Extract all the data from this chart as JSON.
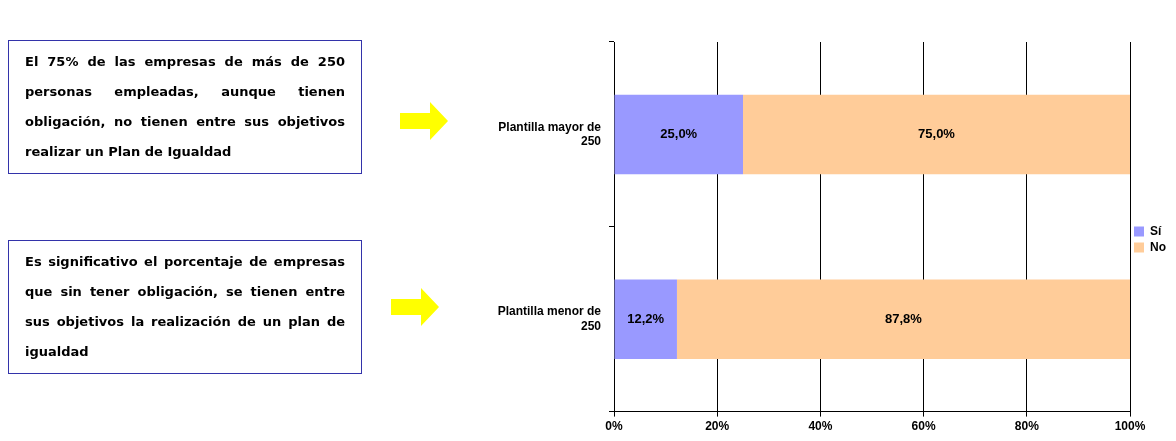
{
  "chart_data": {
    "type": "bar",
    "orientation": "horizontal",
    "stacked": true,
    "categories": [
      "Plantilla mayor de 250",
      "Plantilla menor de 250"
    ],
    "series": [
      {
        "name": "Sí",
        "color": "#9999ff",
        "values": [
          25.0,
          12.2
        ],
        "value_labels": [
          "25,0%",
          "12,2%"
        ]
      },
      {
        "name": "No",
        "color": "#ffcc99",
        "values": [
          75.0,
          87.8
        ],
        "value_labels": [
          "75,0%",
          "87,8%"
        ]
      }
    ],
    "xlim": [
      0,
      100
    ],
    "xticks": [
      {
        "value": 0,
        "label": "0%"
      },
      {
        "value": 20,
        "label": "20%"
      },
      {
        "value": 40,
        "label": "40%"
      },
      {
        "value": 60,
        "label": "60%"
      },
      {
        "value": 80,
        "label": "80%"
      },
      {
        "value": 100,
        "label": "100%"
      }
    ],
    "grid": "x",
    "legend": "right",
    "annotations": [
      "El 75% de las empresas de más de 250 personas empleadas, aunque tienen obligación, no tienen entre sus objetivos realizar un Plan de Igualdad",
      "Es significativo el porcentaje de empresas que sin tener obligación, se tienen entre sus objetivos la realización de un plan de igualdad"
    ]
  }
}
